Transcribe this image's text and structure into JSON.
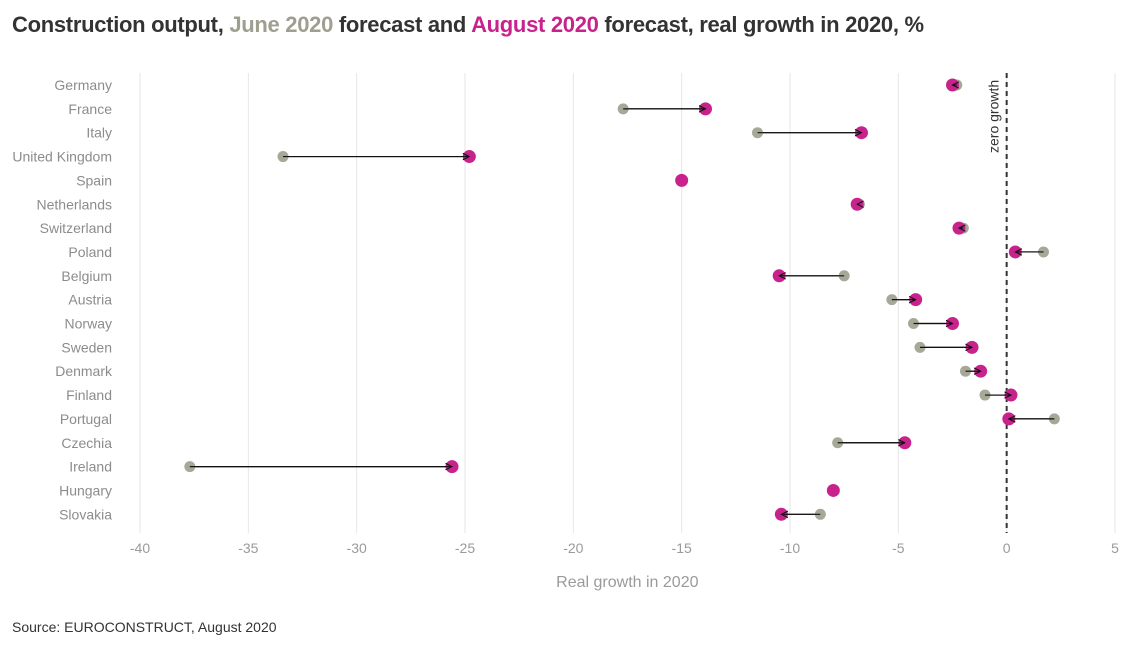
{
  "title": {
    "prefix": "Construction output, ",
    "june": "June 2020",
    "middle": " forecast and ",
    "august": "August 2020",
    "suffix": " forecast, real growth in 2020, %"
  },
  "source": "Source: EUROCONSTRUCT, August 2020",
  "colors": {
    "june": "#a8a899",
    "august": "#c8238c",
    "grid": "#e6e6e6",
    "zero_line": "#333333",
    "arrow": "#111111"
  },
  "chart_data": {
    "type": "dumbbell",
    "xlabel": "Real growth in 2020",
    "xlim": [
      -40,
      5
    ],
    "xticks": [
      -40,
      -35,
      -30,
      -25,
      -20,
      -15,
      -10,
      -5,
      0,
      5
    ],
    "annotation": "zero growth",
    "legend": [
      "June 2020",
      "August 2020"
    ],
    "categories": [
      "Germany",
      "France",
      "Italy",
      "United Kingdom",
      "Spain",
      "Netherlands",
      "Switzerland",
      "Poland",
      "Belgium",
      "Austria",
      "Norway",
      "Sweden",
      "Denmark",
      "Finland",
      "Portugal",
      "Czechia",
      "Ireland",
      "Hungary",
      "Slovakia"
    ],
    "series": [
      {
        "name": "June 2020",
        "values": [
          -2.3,
          -17.7,
          -11.5,
          -33.4,
          -15.0,
          -6.8,
          -2.0,
          1.7,
          -7.5,
          -5.3,
          -4.3,
          -4.0,
          -1.9,
          -1.0,
          2.2,
          -7.8,
          -37.7,
          -8.0,
          -8.6
        ]
      },
      {
        "name": "August 2020",
        "values": [
          -2.5,
          -13.9,
          -6.7,
          -24.8,
          -15.0,
          -6.9,
          -2.2,
          0.4,
          -10.5,
          -4.2,
          -2.5,
          -1.6,
          -1.2,
          0.2,
          0.1,
          -4.7,
          -25.6,
          -8.0,
          -10.4
        ]
      }
    ]
  }
}
